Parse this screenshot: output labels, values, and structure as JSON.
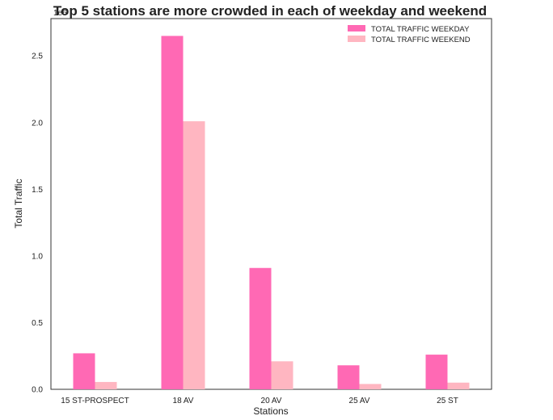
{
  "chart_data": {
    "type": "bar",
    "title": "Top 5 stations are more crowded in each of weekday and weekend",
    "xlabel": "Stations",
    "ylabel": "Total Traffic",
    "y_offset_label": "1e6",
    "categories": [
      "15 ST-PROSPECT",
      "18 AV",
      "20 AV",
      "25 AV",
      "25 ST"
    ],
    "series": [
      {
        "name": "TOTAL TRAFFIC WEEKDAY",
        "color": "#ff69b4",
        "values": [
          0.27,
          2.65,
          0.91,
          0.18,
          0.26
        ]
      },
      {
        "name": "TOTAL TRAFFIC WEEKEND",
        "color": "#ffb6c1",
        "values": [
          0.055,
          2.01,
          0.21,
          0.04,
          0.05
        ]
      }
    ],
    "yticks": [
      "0.0",
      "0.5",
      "1.0",
      "1.5",
      "2.0",
      "2.5"
    ],
    "ylim": [
      0,
      2.78
    ],
    "grid": false,
    "legend": "top-right"
  }
}
